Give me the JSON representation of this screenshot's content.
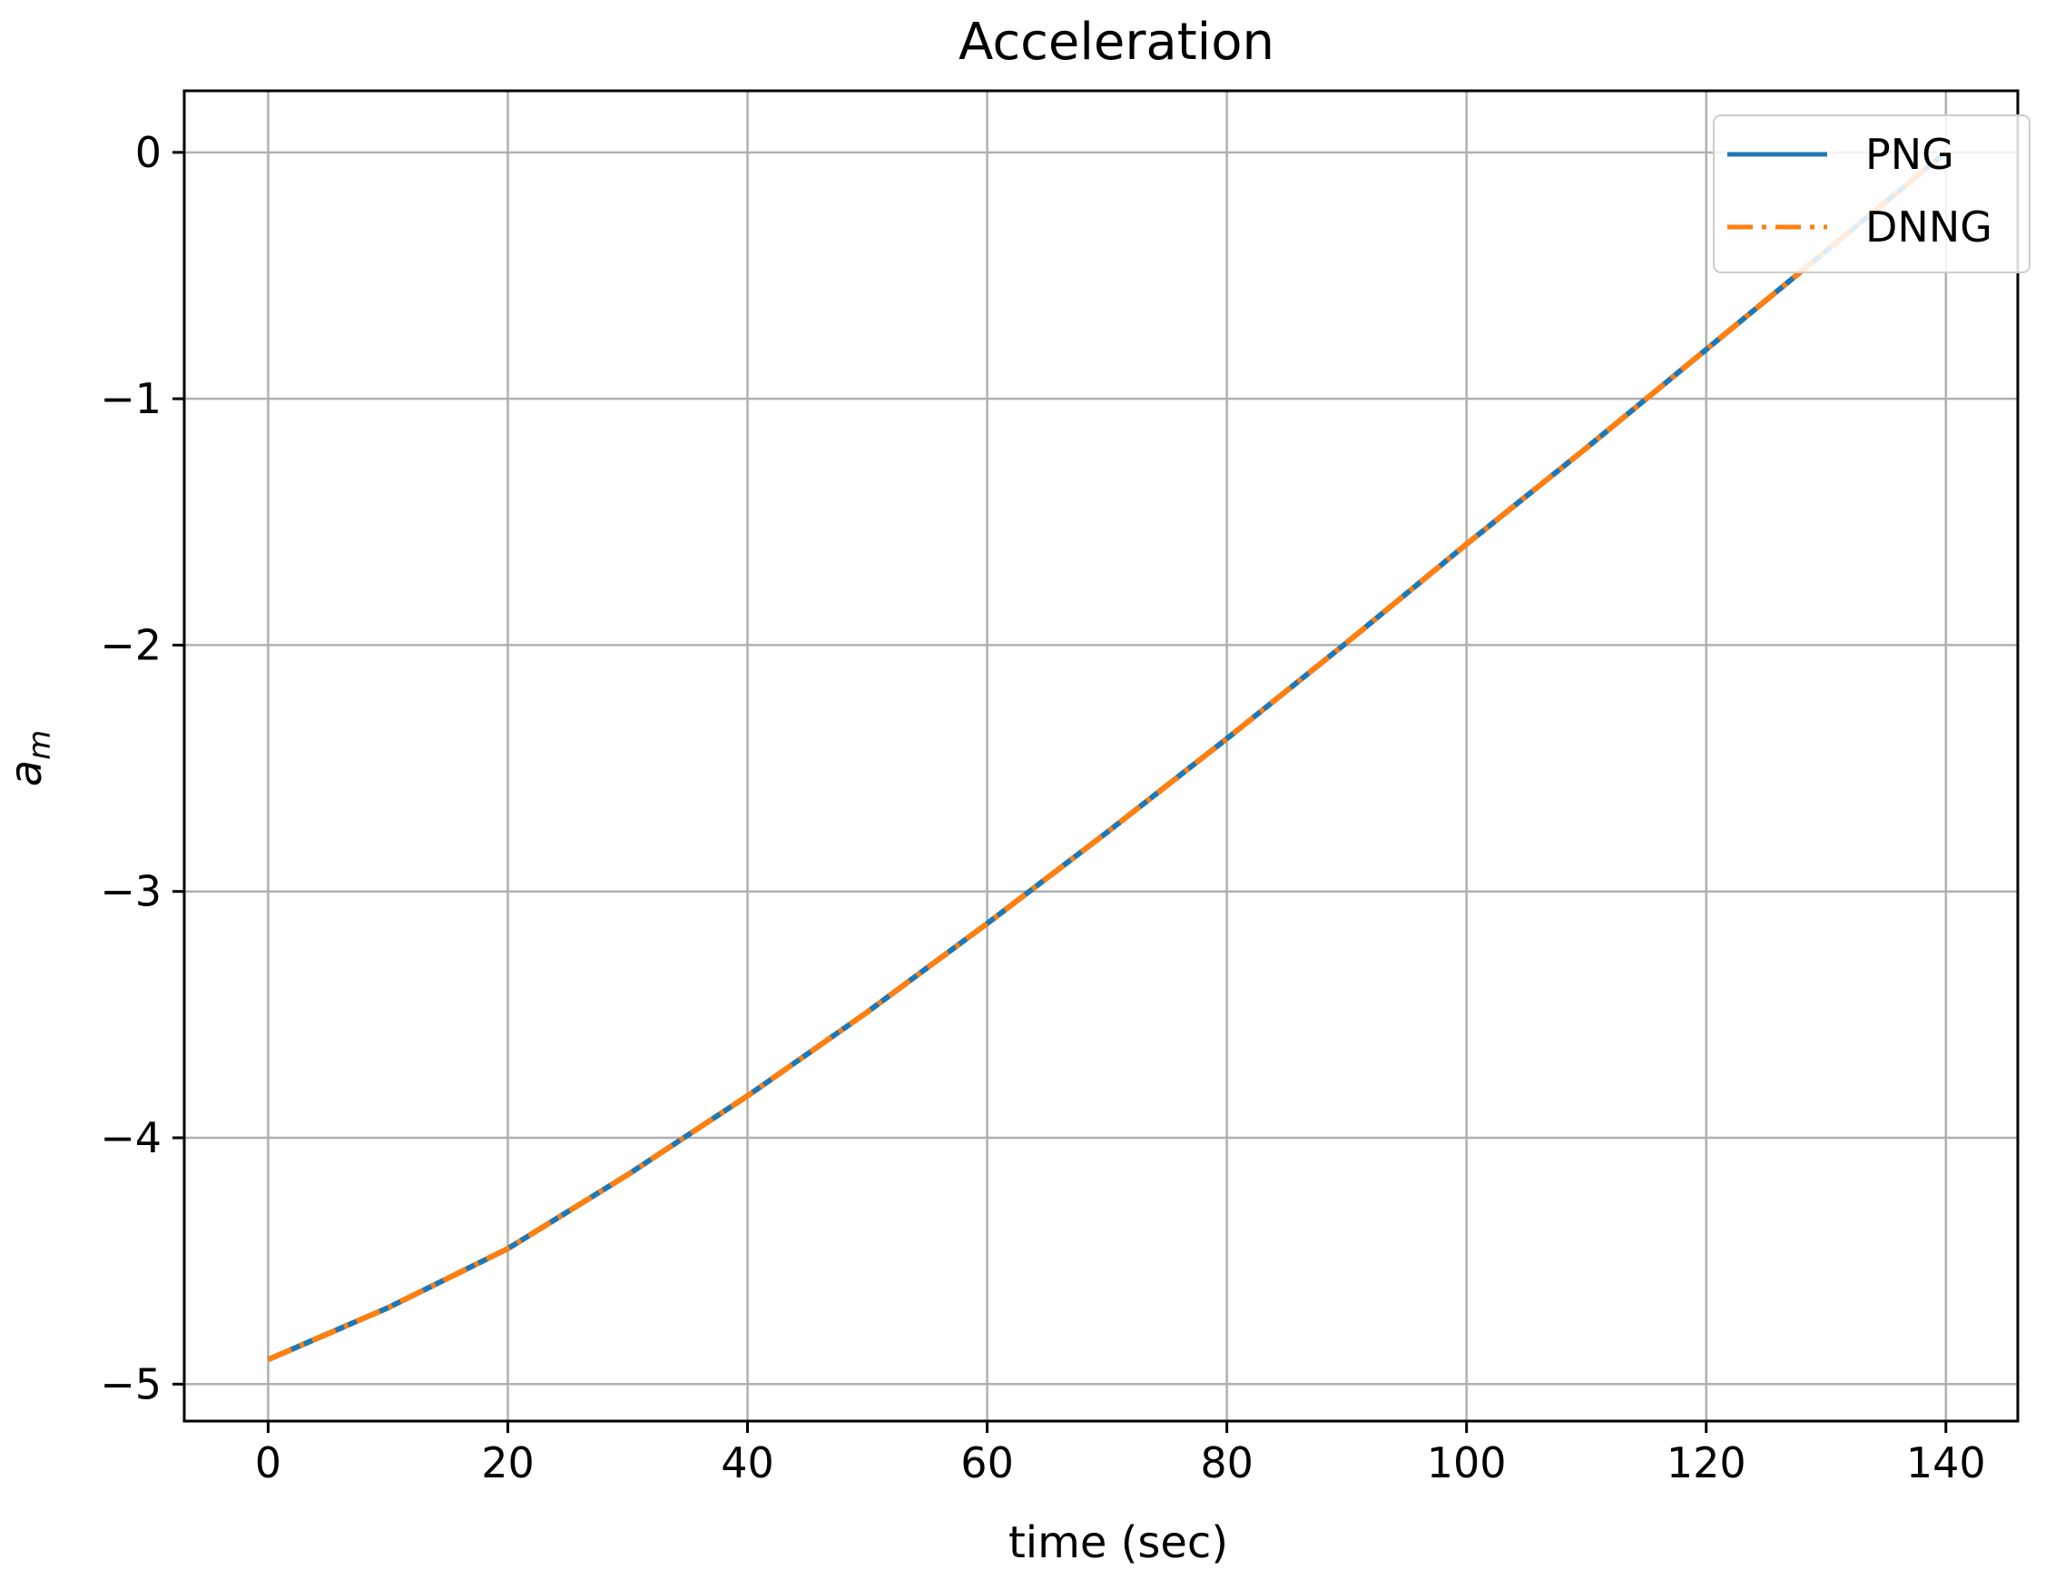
{
  "chart_data": {
    "type": "line",
    "title": "Acceleration",
    "xlabel": "time (sec)",
    "ylabel_base": "a",
    "ylabel_sub": "m",
    "xlim": [
      -7,
      146
    ],
    "ylim": [
      -5.15,
      0.25
    ],
    "xticks": [
      0,
      20,
      40,
      60,
      80,
      100,
      120,
      140
    ],
    "yticks": [
      0,
      -1,
      -2,
      -3,
      -4,
      -5
    ],
    "xtick_labels": [
      "0",
      "20",
      "40",
      "60",
      "80",
      "100",
      "120",
      "140"
    ],
    "ytick_labels": [
      "0",
      "−1",
      "−2",
      "−3",
      "−4",
      "−5"
    ],
    "grid": true,
    "legend_position": "top-right",
    "x": [
      0,
      10,
      20,
      30,
      40,
      50,
      60,
      70,
      80,
      90,
      100,
      110,
      120,
      130,
      140
    ],
    "series": [
      {
        "name": "PNG",
        "color": "#1f77b4",
        "style": "solid",
        "values": [
          -4.9,
          -4.69,
          -4.45,
          -4.15,
          -3.83,
          -3.49,
          -3.13,
          -2.76,
          -2.38,
          -1.99,
          -1.59,
          -1.2,
          -0.8,
          -0.4,
          0.0
        ]
      },
      {
        "name": "DNNG",
        "color": "#ff7f0e",
        "style": "dashdot",
        "values": [
          -4.9,
          -4.69,
          -4.45,
          -4.15,
          -3.83,
          -3.49,
          -3.13,
          -2.76,
          -2.38,
          -1.99,
          -1.59,
          -1.2,
          -0.8,
          -0.4,
          0.0
        ]
      }
    ]
  }
}
